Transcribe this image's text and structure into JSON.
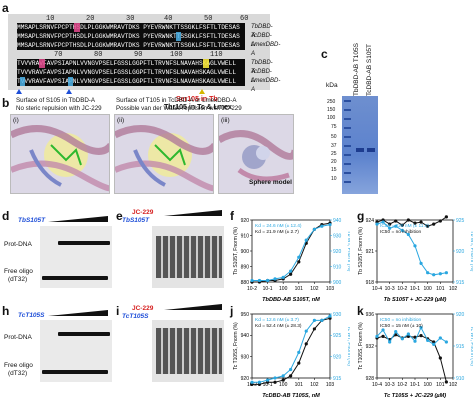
{
  "panels": {
    "a": "a",
    "b": "b",
    "c": "c",
    "d": "d",
    "e": "e",
    "f": "f",
    "g": "g",
    "h": "h",
    "i": "i",
    "j": "j",
    "k": "k"
  },
  "alignment": {
    "top_numbers": [
      "10",
      "20",
      "30",
      "40",
      "50",
      "60"
    ],
    "bottom_numbers": [
      "70",
      "80",
      "90",
      "100",
      "110"
    ],
    "row1": [
      "MMSAPLSRNVFPCPTHSDLPLGGKWMRAVTDKS PYEVRWNKTTSSGKLFSFTLTDESAS",
      "MMSAPLSRNVFPCPTHSDLPLGGKWMRAVTDKS PYEVRWNKTTSSGKLFSFTLTDESAS",
      "MMSAPLSRNVFPCPTHSDLPLGGKWMRAVTDKS PYEVRWNKTTSSGKLFSFTLTDESAS"
    ],
    "row2": [
      "TVVVRAVFAVPSIAPNLVVNGVPSELFGSSLGGPFTLTRVNFSLNAVAHSKAGLVWELL",
      "TVVVRAVFAVPSIAPNLVVNGVPSELFGSSLGGPFTLTRVNFSLNAVAHSKAGLVWELL",
      "TVVVRAVFAVPSIAPNLVVNGVPSELFGSSLGGPFTLTRVNFSLNAVAHSKAGLVWELL"
    ],
    "species": [
      "TbDBD-A",
      "TcDBD-A",
      "LmexDBD-A"
    ],
    "note1": "Ser105 in Tb",
    "note2": "Thr105 in Tc & Lmex"
  },
  "surface": {
    "cap1": "Surface of S105 in TbDBD-A",
    "cap1b": "No steric repulsion with JC-229",
    "cap2": "Surface of T105 in TcDBD-A or LmexDBD-A",
    "cap2b": "Possible van der Waals repulsion with JC-229",
    "sub1": "(i)",
    "sub2": "(ii)",
    "sub3": "(iii)",
    "sphere": "Sphere model"
  },
  "gel_c": {
    "title1": "TbDBD-AB T105S",
    "title2": "TcDBD-AB S105T",
    "unit": "kDa",
    "markers": [
      "250",
      "150",
      "100",
      "75",
      "50",
      "37",
      "25",
      "20",
      "15",
      "10"
    ]
  },
  "gels": {
    "d": {
      "title": "TbS105T",
      "prot": "Prot-DNA",
      "free": "Free oligo",
      "dt": "(dT32)"
    },
    "e": {
      "title": "TbS105T",
      "jc": "JC-229"
    },
    "h": {
      "title": "TcT105S",
      "prot": "Prot-DNA",
      "free": "Free oligo",
      "dt": "(dT32)"
    },
    "i": {
      "title": "TcT105S",
      "jc": "JC-229"
    }
  },
  "plots": {
    "f": {
      "xlabel": "TbDBD-AB S105T, nM",
      "ylabel": "Tb S105T, Fnorm (%)",
      "ylabel2": "Tb WT, Fnorm (%)",
      "kd1": "Kd = 24.6 nM (± 12.4)",
      "kd2": "Kd = 21.9 nM (± 2.7)"
    },
    "g": {
      "xlabel": "Tb S105T + JC-229 (µM)",
      "ylabel": "Tb S105T, Fnorm (%)",
      "ylabel2": "Tb WT, Fnorm (%)",
      "ic1": "IC50 = 228 nM (± 11.0)",
      "ic2": "IC50 = no inhibition"
    },
    "j": {
      "xlabel": "TcDBD-AB T105S, nM",
      "ylabel": "Tc T105S, Fnorm (%)",
      "ylabel2": "Tc WT, Fnorm (%)",
      "kd1": "Kd = 12.6 nM (± 3.7)",
      "kd2": "Kd = 52.4 nM (± 28.3)"
    },
    "k": {
      "xlabel": "Tc T105S + JC-229 (µM)",
      "ylabel": "Tc T105S, Fnorm (%)",
      "ylabel2": "Tc WT, Fnorm (%)",
      "ic1": "IC50 = no inhibition",
      "ic2": "IC50 = 15 nM (± 10)"
    }
  },
  "chart_data": [
    {
      "panel": "f",
      "type": "line",
      "xscale": "log",
      "xlim": [
        "10^-2",
        "10^3"
      ],
      "x_ticks": [
        "10^-2",
        "10^-1",
        "10^0",
        "10^1",
        "10^2",
        "10^3"
      ],
      "y_ticks": [
        "880",
        "890",
        "900",
        "910",
        "920"
      ],
      "y2_ticks": [
        "900",
        "910",
        "920",
        "930",
        "940"
      ],
      "series": [
        {
          "color": "#111111",
          "x": [
            0.01,
            0.03,
            0.1,
            0.3,
            1,
            3,
            10,
            30,
            100,
            300,
            1000
          ],
          "y": [
            880,
            880,
            881,
            881,
            882,
            885,
            893,
            905,
            914,
            917,
            918
          ]
        },
        {
          "color": "#2aa7e0",
          "x": [
            0.01,
            0.03,
            0.1,
            0.3,
            1,
            3,
            10,
            30,
            100,
            300,
            1000
          ],
          "y": [
            881,
            881,
            881,
            882,
            883,
            887,
            896,
            907,
            914,
            916,
            917
          ]
        }
      ]
    },
    {
      "panel": "g",
      "type": "line",
      "xscale": "log",
      "xlim": [
        "10^-4",
        "10^2"
      ],
      "x_ticks": [
        "10^-4",
        "10^-3",
        "10^-2",
        "10^-1",
        "10^0",
        "10^1",
        "10^2"
      ],
      "y_ticks": [
        "918",
        "921",
        "924"
      ],
      "y2_ticks": [
        "915",
        "920",
        "925"
      ],
      "series": [
        {
          "color": "#111111",
          "x": [
            0.0001,
            0.0003,
            0.001,
            0.003,
            0.01,
            0.03,
            0.1,
            0.3,
            1,
            3,
            10,
            30
          ],
          "y": [
            923.8,
            924,
            923.6,
            923.9,
            923.5,
            924,
            923.7,
            923.8,
            923.4,
            923.6,
            923.9,
            924.3
          ]
        },
        {
          "color": "#2aa7e0",
          "x": [
            0.0001,
            0.0003,
            0.001,
            0.003,
            0.01,
            0.03,
            0.1,
            0.3,
            1,
            3,
            10,
            30
          ],
          "y": [
            923.6,
            923.8,
            923.2,
            923.4,
            923,
            922.6,
            921.5,
            919.8,
            918.9,
            918.7,
            918.8,
            918.9
          ]
        }
      ]
    },
    {
      "panel": "j",
      "type": "line",
      "xscale": "log",
      "xlim": [
        "10^-2",
        "10^3"
      ],
      "x_ticks": [
        "10^-2",
        "10^-1",
        "10^0",
        "10^1",
        "10^2",
        "10^3"
      ],
      "y_ticks": [
        "920",
        "930",
        "940",
        "950"
      ],
      "y2_ticks": [
        "915",
        "920",
        "925",
        "930"
      ],
      "series": [
        {
          "color": "#111111",
          "x": [
            0.01,
            0.03,
            0.1,
            0.3,
            1,
            3,
            10,
            30,
            100,
            300,
            1000
          ],
          "y": [
            917,
            917,
            918,
            918,
            919,
            921,
            927,
            936,
            943,
            947,
            948
          ]
        },
        {
          "color": "#2aa7e0",
          "x": [
            0.01,
            0.03,
            0.1,
            0.3,
            1,
            3,
            10,
            30,
            100,
            300,
            1000
          ],
          "y": [
            918,
            918,
            919,
            920,
            921,
            924,
            932,
            942,
            947,
            947,
            949
          ]
        }
      ]
    },
    {
      "panel": "k",
      "type": "line",
      "xscale": "log",
      "xlim": [
        "10^-4",
        "10^2"
      ],
      "x_ticks": [
        "10^-4",
        "10^-3",
        "10^-2",
        "10^-1",
        "10^0",
        "10^1",
        "10^2"
      ],
      "y_ticks": [
        "928",
        "932",
        "936"
      ],
      "y2_ticks": [
        "910",
        "915",
        "920"
      ],
      "series": [
        {
          "color": "#111111",
          "x": [
            0.0001,
            0.0003,
            0.001,
            0.003,
            0.01,
            0.03,
            0.1,
            0.3,
            1,
            3,
            10,
            30
          ],
          "y": [
            933,
            933.2,
            932.8,
            933.4,
            933,
            933.2,
            933.1,
            933.3,
            932.9,
            932.5,
            930.5,
            927.5
          ]
        },
        {
          "color": "#2aa7e0",
          "x": [
            0.0001,
            0.0003,
            0.001,
            0.003,
            0.01,
            0.03,
            0.1,
            0.3,
            1,
            3,
            10,
            30
          ],
          "y": [
            933.2,
            934,
            932.5,
            933.8,
            932.9,
            933.5,
            932.6,
            934.3,
            932.7,
            932.2,
            933,
            932.5
          ]
        }
      ]
    }
  ]
}
